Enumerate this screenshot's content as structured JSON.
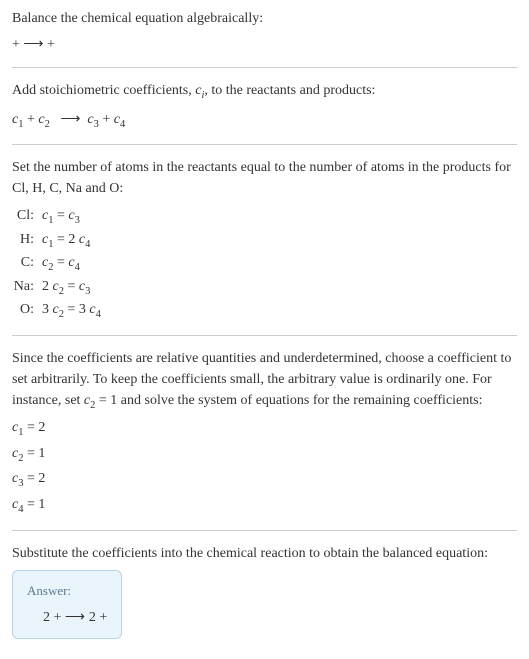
{
  "intro": {
    "line1": "Balance the chemical equation algebraically:",
    "reaction_left": " + ",
    "reaction_arrow": "⟶",
    "reaction_right": " + "
  },
  "stoich": {
    "text_prefix": "Add stoichiometric coefficients, ",
    "text_var": "c",
    "text_var_sub": "i",
    "text_suffix": ", to the reactants and products:",
    "c1": "c",
    "c1_sub": "1",
    "plus1": " + ",
    "c2": "c",
    "c2_sub": "2",
    "arrow": "⟶",
    "c3": "c",
    "c3_sub": "3",
    "plus2": " + ",
    "c4": "c",
    "c4_sub": "4"
  },
  "atoms": {
    "intro": "Set the number of atoms in the reactants equal to the number of atoms in the products for Cl, H, C, Na and O:",
    "rows": [
      {
        "label": "Cl:",
        "lhs_coeff": "",
        "lhs_c": "c",
        "lhs_sub": "1",
        "eq": " = ",
        "rhs_coeff": "",
        "rhs_c": "c",
        "rhs_sub": "3"
      },
      {
        "label": "H:",
        "lhs_coeff": "",
        "lhs_c": "c",
        "lhs_sub": "1",
        "eq": " = ",
        "rhs_coeff": "2 ",
        "rhs_c": "c",
        "rhs_sub": "4"
      },
      {
        "label": "C:",
        "lhs_coeff": "",
        "lhs_c": "c",
        "lhs_sub": "2",
        "eq": " = ",
        "rhs_coeff": "",
        "rhs_c": "c",
        "rhs_sub": "4"
      },
      {
        "label": "Na:",
        "lhs_coeff": "2 ",
        "lhs_c": "c",
        "lhs_sub": "2",
        "eq": " = ",
        "rhs_coeff": "",
        "rhs_c": "c",
        "rhs_sub": "3"
      },
      {
        "label": "O:",
        "lhs_coeff": "3 ",
        "lhs_c": "c",
        "lhs_sub": "2",
        "eq": " = ",
        "rhs_coeff": "3 ",
        "rhs_c": "c",
        "rhs_sub": "4"
      }
    ]
  },
  "solve": {
    "text_p1": "Since the coefficients are relative quantities and underdetermined, choose a coefficient to set arbitrarily. To keep the coefficients small, the arbitrary value is ordinarily one. For instance, set ",
    "var": "c",
    "var_sub": "2",
    "text_p2": " = 1 and solve the system of equations for the remaining coefficients:",
    "coeffs": [
      {
        "c": "c",
        "sub": "1",
        "val": " = 2"
      },
      {
        "c": "c",
        "sub": "2",
        "val": " = 1"
      },
      {
        "c": "c",
        "sub": "3",
        "val": " = 2"
      },
      {
        "c": "c",
        "sub": "4",
        "val": " = 1"
      }
    ]
  },
  "final": {
    "text": "Substitute the coefficients into the chemical reaction to obtain the balanced equation:"
  },
  "answer": {
    "label": "Answer:",
    "eq_l": "2  + ",
    "eq_arrow": " ⟶ ",
    "eq_r": "2  + "
  },
  "colors": {
    "text": "#333333",
    "hr": "#cccccc",
    "box_bg": "#eaf4fb",
    "box_border": "#b8d4e6",
    "answer_label": "#5a7a95"
  }
}
